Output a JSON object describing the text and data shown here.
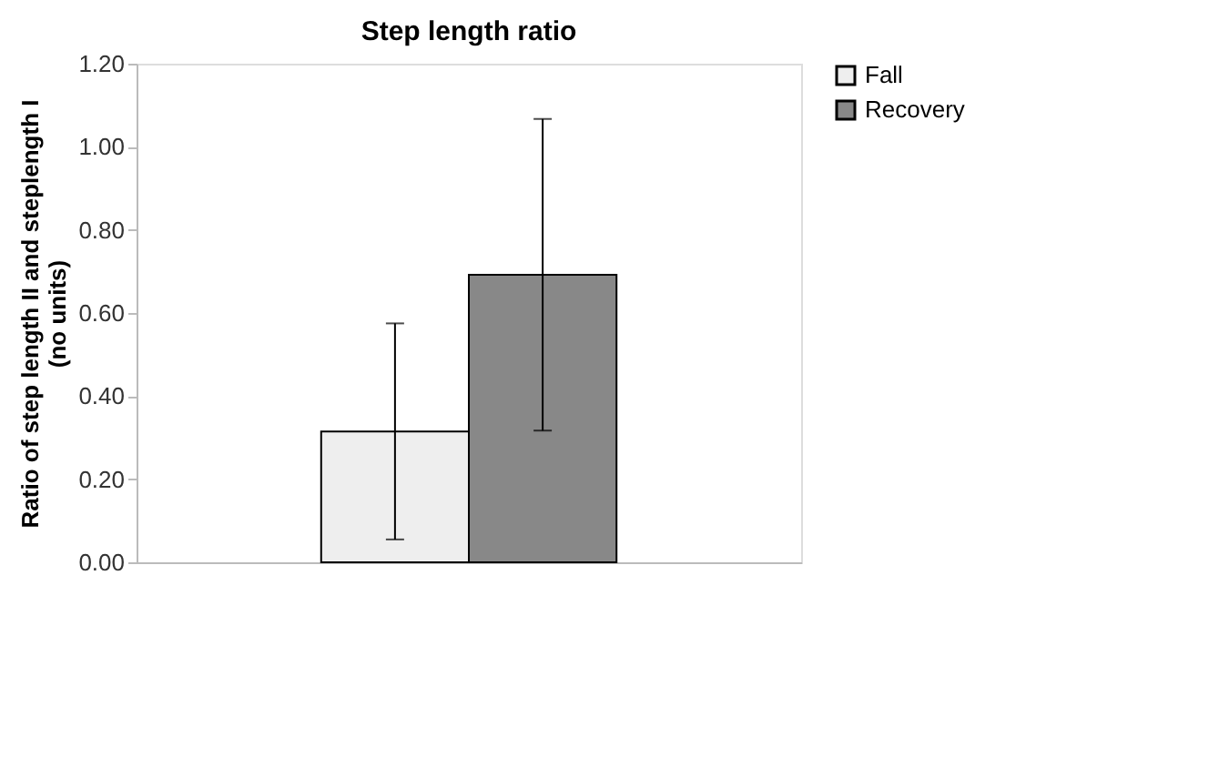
{
  "chart_data": {
    "type": "bar",
    "title": "Step length ratio",
    "ylabel": "Ratio of step  length II and steplength I\n(no units)",
    "categories": [
      null
    ],
    "series": [
      {
        "name": "Fall",
        "color": "#eeeeee",
        "values": [
          0.315
        ],
        "errors": [
          0.26
        ]
      },
      {
        "name": "Recovery",
        "color": "#888888",
        "values": [
          0.692
        ],
        "errors": [
          0.375
        ]
      }
    ],
    "ylim": [
      0,
      1.2
    ],
    "yticks": [
      {
        "value": 0,
        "label": "0.00"
      },
      {
        "value": 0.2,
        "label": "0.20"
      },
      {
        "value": 0.4,
        "label": "0.40"
      },
      {
        "value": 0.6,
        "label": "0.60"
      },
      {
        "value": 0.8,
        "label": "0.80"
      },
      {
        "value": 1.0,
        "label": "1.00"
      },
      {
        "value": 1.2,
        "label": "1.20"
      }
    ],
    "grid": false,
    "legend": "right"
  }
}
